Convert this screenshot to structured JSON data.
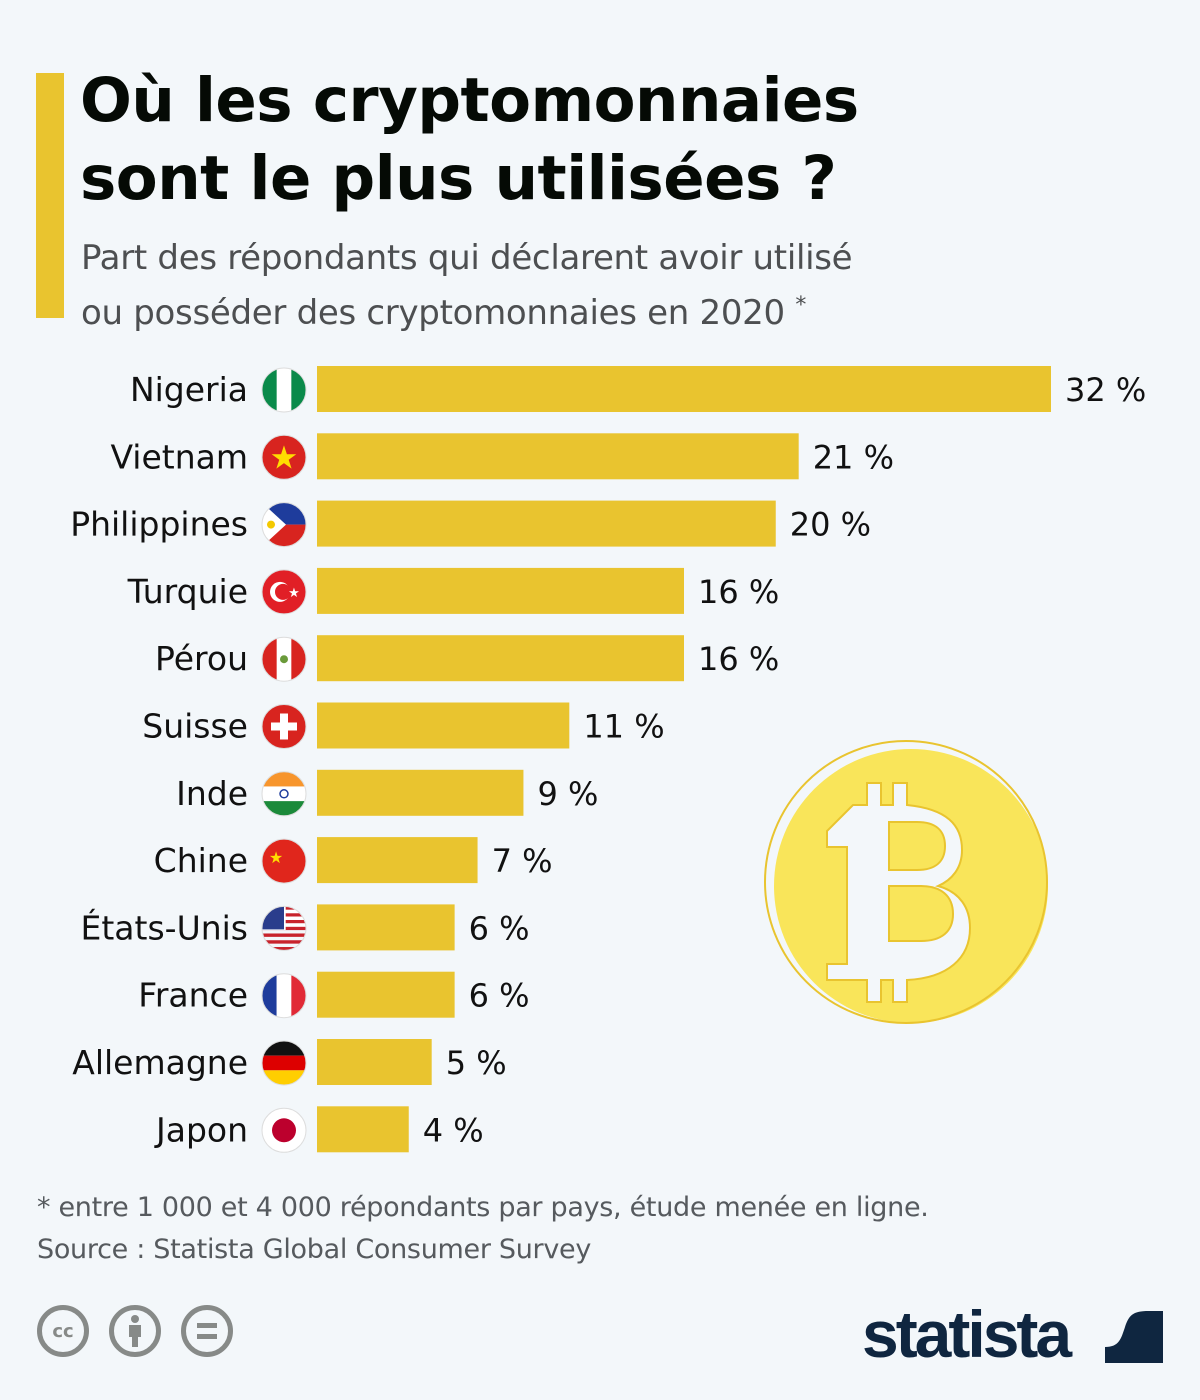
{
  "header": {
    "title_line1": "Où les cryptomonnaies",
    "title_line2": "sont le plus utilisées ?",
    "subtitle_line1": "Part des répondants qui déclarent avoir utilisé",
    "subtitle_line2": "ou posséder des cryptomonnaies en 2020",
    "subtitle_mark": "*"
  },
  "chart_data": {
    "type": "bar",
    "orientation": "horizontal",
    "title": "Où les cryptomonnaies sont le plus utilisées ?",
    "xlabel": "",
    "ylabel": "",
    "unit": "%",
    "xlim": [
      0,
      32
    ],
    "categories": [
      "Nigeria",
      "Vietnam",
      "Philippines",
      "Turquie",
      "Pérou",
      "Suisse",
      "Inde",
      "Chine",
      "États-Unis",
      "France",
      "Allemagne",
      "Japon"
    ],
    "flags": [
      "ng",
      "vn",
      "ph",
      "tr",
      "pe",
      "ch",
      "in",
      "cn",
      "us",
      "fr",
      "de",
      "jp"
    ],
    "values": [
      32,
      21,
      20,
      16,
      16,
      11,
      9,
      7,
      6,
      6,
      5,
      4
    ],
    "value_labels": [
      "32 %",
      "21 %",
      "20 %",
      "16 %",
      "16 %",
      "11 %",
      "9 %",
      "7 %",
      "6 %",
      "6 %",
      "5 %",
      "4 %"
    ],
    "bar_color": "#e9c42f",
    "grid": false
  },
  "footer": {
    "note": "* entre 1 000 et 4 000 répondants par pays, étude menée en ligne.",
    "source": "Source : Statista Global Consumer Survey",
    "cc_label": "cc",
    "brand": "statista"
  }
}
